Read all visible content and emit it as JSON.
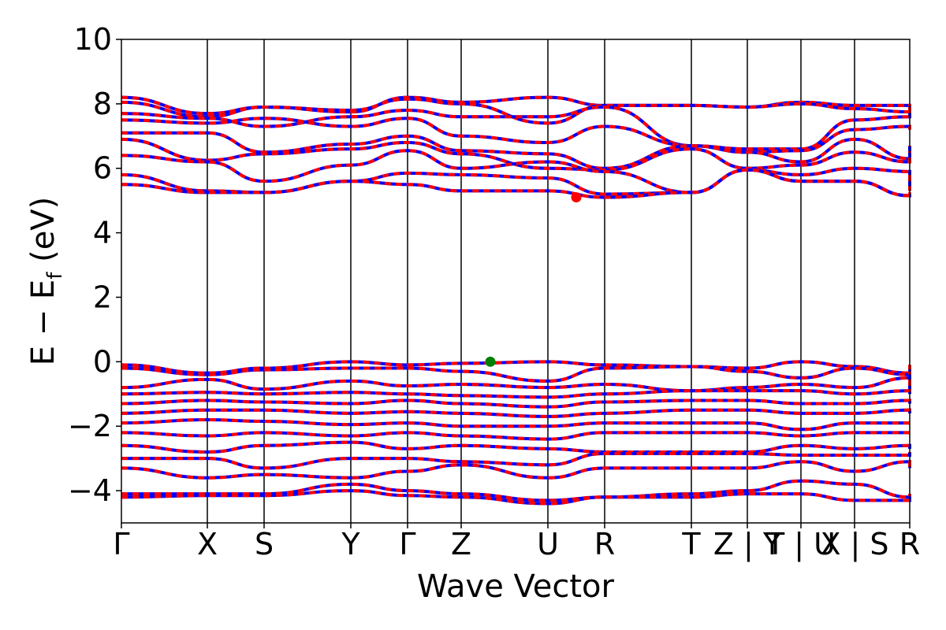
{
  "chart_data": {
    "type": "line",
    "title": "",
    "xlabel": "Wave Vector",
    "ylabel": "E − E",
    "ylabel_subscript": "f",
    "ylabel_unit": " (eV)",
    "ylim": [
      -5,
      10
    ],
    "yticks": [
      10,
      8,
      6,
      4,
      2,
      0,
      -2,
      -4
    ],
    "yticklabels": [
      "10",
      "8",
      "6",
      "4",
      "2",
      "0",
      "−2",
      "−4"
    ],
    "xlim": [
      0,
      1
    ],
    "kpoints": [
      {
        "x": 0.0,
        "label": "Γ"
      },
      {
        "x": 0.109,
        "label": "X"
      },
      {
        "x": 0.181,
        "label": "S"
      },
      {
        "x": 0.291,
        "label": "Y"
      },
      {
        "x": 0.363,
        "label": "Γ"
      },
      {
        "x": 0.431,
        "label": "Z"
      },
      {
        "x": 0.541,
        "label": "U"
      },
      {
        "x": 0.613,
        "label": "R"
      },
      {
        "x": 0.723,
        "label": "T"
      },
      {
        "x": 0.794,
        "label": "Z | Y"
      },
      {
        "x": 0.862,
        "label": "T | U"
      },
      {
        "x": 0.93,
        "label": "X | S"
      },
      {
        "x": 1.0,
        "label": "R"
      }
    ],
    "gap_markers": [
      {
        "name": "CBM",
        "x": 0.577,
        "y": 5.1,
        "color": "#ff0000"
      },
      {
        "name": "VBM",
        "x": 0.468,
        "y": 0.0,
        "color": "#008000"
      }
    ],
    "band_style": {
      "up_color": "#0000ff",
      "down_color": "#ff0000"
    },
    "conduction_bands": [
      [
        8.2,
        7.7,
        7.9,
        7.75,
        8.2,
        8.05,
        8.2,
        7.95,
        7.95,
        7.9,
        8.05,
        7.95,
        7.95,
        7.95
      ],
      [
        8.05,
        7.6,
        7.9,
        7.8,
        8.15,
        8.0,
        7.4,
        7.95,
        7.95,
        7.9,
        8.0,
        7.85,
        7.75,
        8.0
      ],
      [
        7.7,
        7.55,
        7.3,
        7.6,
        7.8,
        7.6,
        7.6,
        7.9,
        6.7,
        6.6,
        6.6,
        7.5,
        7.6,
        7.9
      ],
      [
        7.5,
        7.4,
        7.55,
        7.3,
        7.55,
        7.0,
        6.8,
        7.3,
        6.7,
        6.5,
        6.55,
        7.2,
        7.3,
        7.2
      ],
      [
        7.1,
        7.1,
        6.5,
        6.75,
        7.0,
        6.55,
        6.45,
        6.0,
        6.7,
        6.5,
        6.2,
        6.9,
        6.3,
        6.7
      ],
      [
        6.9,
        6.25,
        6.45,
        6.6,
        6.8,
        6.45,
        6.0,
        5.95,
        6.6,
        6.0,
        6.1,
        6.5,
        6.2,
        6.5
      ],
      [
        6.4,
        6.2,
        5.6,
        6.1,
        6.55,
        6.0,
        6.2,
        5.9,
        5.25,
        5.95,
        5.8,
        6.0,
        5.9,
        5.3
      ],
      [
        5.8,
        5.3,
        5.25,
        5.6,
        5.85,
        5.8,
        5.7,
        5.2,
        5.25,
        5.95,
        5.6,
        5.6,
        5.15,
        5.25
      ],
      [
        5.5,
        5.25,
        5.25,
        5.6,
        5.5,
        5.3,
        5.3,
        5.1,
        5.25,
        5.95,
        5.6,
        5.6,
        5.15,
        5.2
      ]
    ],
    "valence_bands": [
      [
        -0.1,
        -0.35,
        -0.2,
        0.0,
        -0.1,
        -0.05,
        0.0,
        -0.1,
        -0.15,
        -0.2,
        0.0,
        -0.15,
        -0.35,
        -0.1
      ],
      [
        -0.2,
        -0.4,
        -0.25,
        -0.2,
        -0.2,
        -0.3,
        -0.6,
        -0.2,
        -0.15,
        -0.3,
        -0.5,
        -0.2,
        -0.4,
        -0.3
      ],
      [
        -0.8,
        -0.55,
        -0.85,
        -0.6,
        -0.75,
        -0.7,
        -0.8,
        -0.7,
        -0.9,
        -0.8,
        -0.7,
        -0.8,
        -0.5,
        -0.9
      ],
      [
        -1.0,
        -0.95,
        -1.0,
        -0.95,
        -1.0,
        -1.05,
        -1.1,
        -1.0,
        -0.9,
        -0.9,
        -0.9,
        -1.0,
        -0.9,
        -1.0
      ],
      [
        -1.3,
        -1.2,
        -1.25,
        -1.3,
        -1.2,
        -1.3,
        -1.4,
        -1.25,
        -1.2,
        -1.2,
        -1.3,
        -1.3,
        -1.2,
        -1.3
      ],
      [
        -1.6,
        -1.5,
        -1.5,
        -1.6,
        -1.55,
        -1.6,
        -1.7,
        -1.6,
        -1.5,
        -1.5,
        -1.6,
        -1.6,
        -1.5,
        -1.6
      ],
      [
        -1.9,
        -1.8,
        -1.85,
        -1.95,
        -1.9,
        -2.0,
        -2.0,
        -1.9,
        -1.9,
        -1.9,
        -2.1,
        -1.9,
        -1.9,
        -1.9
      ],
      [
        -2.2,
        -2.3,
        -2.2,
        -2.3,
        -2.2,
        -2.3,
        -2.4,
        -2.2,
        -2.2,
        -2.2,
        -2.3,
        -2.2,
        -2.2,
        -2.2
      ],
      [
        -2.6,
        -2.8,
        -2.6,
        -2.5,
        -2.7,
        -2.6,
        -2.7,
        -2.8,
        -2.8,
        -2.8,
        -2.6,
        -2.7,
        -2.6,
        -2.7
      ],
      [
        -3.0,
        -3.0,
        -3.3,
        -3.0,
        -3.0,
        -3.1,
        -3.2,
        -2.85,
        -2.85,
        -2.85,
        -2.9,
        -2.9,
        -2.9,
        -2.8
      ],
      [
        -3.3,
        -3.6,
        -3.5,
        -3.6,
        -3.4,
        -3.2,
        -3.6,
        -3.3,
        -3.3,
        -3.3,
        -3.1,
        -3.4,
        -3.1,
        -3.3
      ],
      [
        -4.1,
        -4.1,
        -4.1,
        -3.8,
        -4.0,
        -4.1,
        -4.3,
        -4.2,
        -4.1,
        -4.0,
        -3.7,
        -3.8,
        -4.2,
        -4.1
      ],
      [
        -4.2,
        -4.15,
        -4.15,
        -4.0,
        -4.15,
        -4.2,
        -4.4,
        -4.2,
        -4.2,
        -4.1,
        -4.1,
        -4.3,
        -4.3,
        -4.2
      ]
    ]
  }
}
